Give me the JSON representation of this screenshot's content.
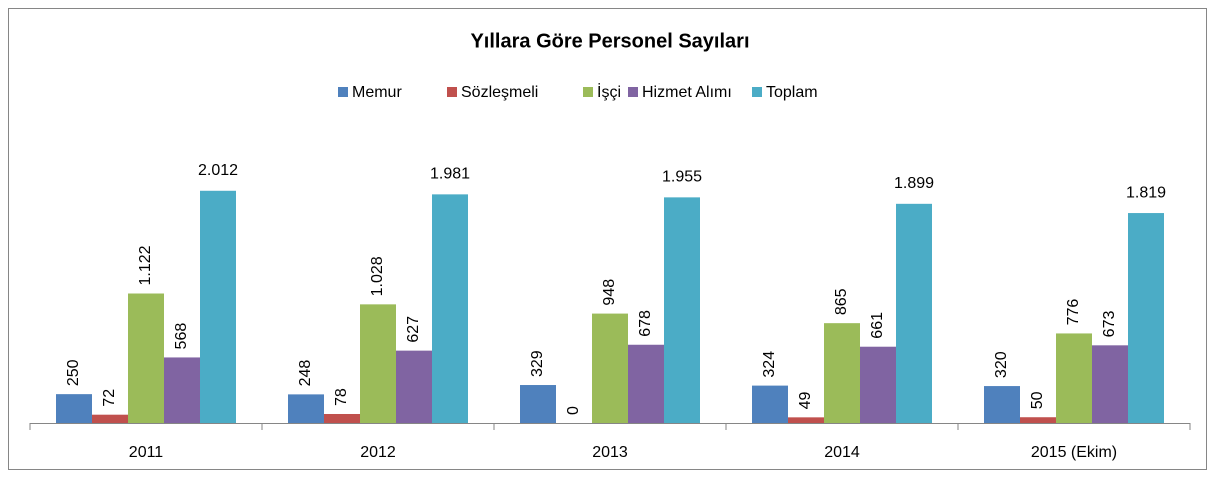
{
  "chart_data": {
    "type": "bar",
    "title": "Yıllara Göre Personel Sayıları",
    "categories": [
      "2011",
      "2012",
      "2013",
      "2014",
      "2015 (Ekim)"
    ],
    "series": [
      {
        "name": "Memur",
        "color": "#4f81bd",
        "values": [
          250,
          248,
          329,
          324,
          320
        ],
        "value_labels": [
          "250",
          "248",
          "329",
          "324",
          "320"
        ]
      },
      {
        "name": "Sözleşmeli",
        "color": "#c0504d",
        "values": [
          72,
          78,
          0,
          49,
          50
        ],
        "value_labels": [
          "72",
          "78",
          "0",
          "49",
          "50"
        ]
      },
      {
        "name": "İşçi",
        "color": "#9bbb59",
        "values": [
          1122,
          1028,
          948,
          865,
          776
        ],
        "value_labels": [
          "1.122",
          "1.028",
          "948",
          "865",
          "776"
        ]
      },
      {
        "name": "Hizmet Alımı",
        "color": "#8064a2",
        "values": [
          568,
          627,
          678,
          661,
          673
        ],
        "value_labels": [
          "568",
          "627",
          "678",
          "661",
          "673"
        ]
      },
      {
        "name": "Toplam",
        "color": "#4bacc6",
        "values": [
          2012,
          1981,
          1955,
          1899,
          1819
        ],
        "value_labels": [
          "2.012",
          "1.981",
          "1.955",
          "1.899",
          "1.819"
        ]
      }
    ],
    "ylim": [
      0,
      2400
    ],
    "legend": "top"
  }
}
